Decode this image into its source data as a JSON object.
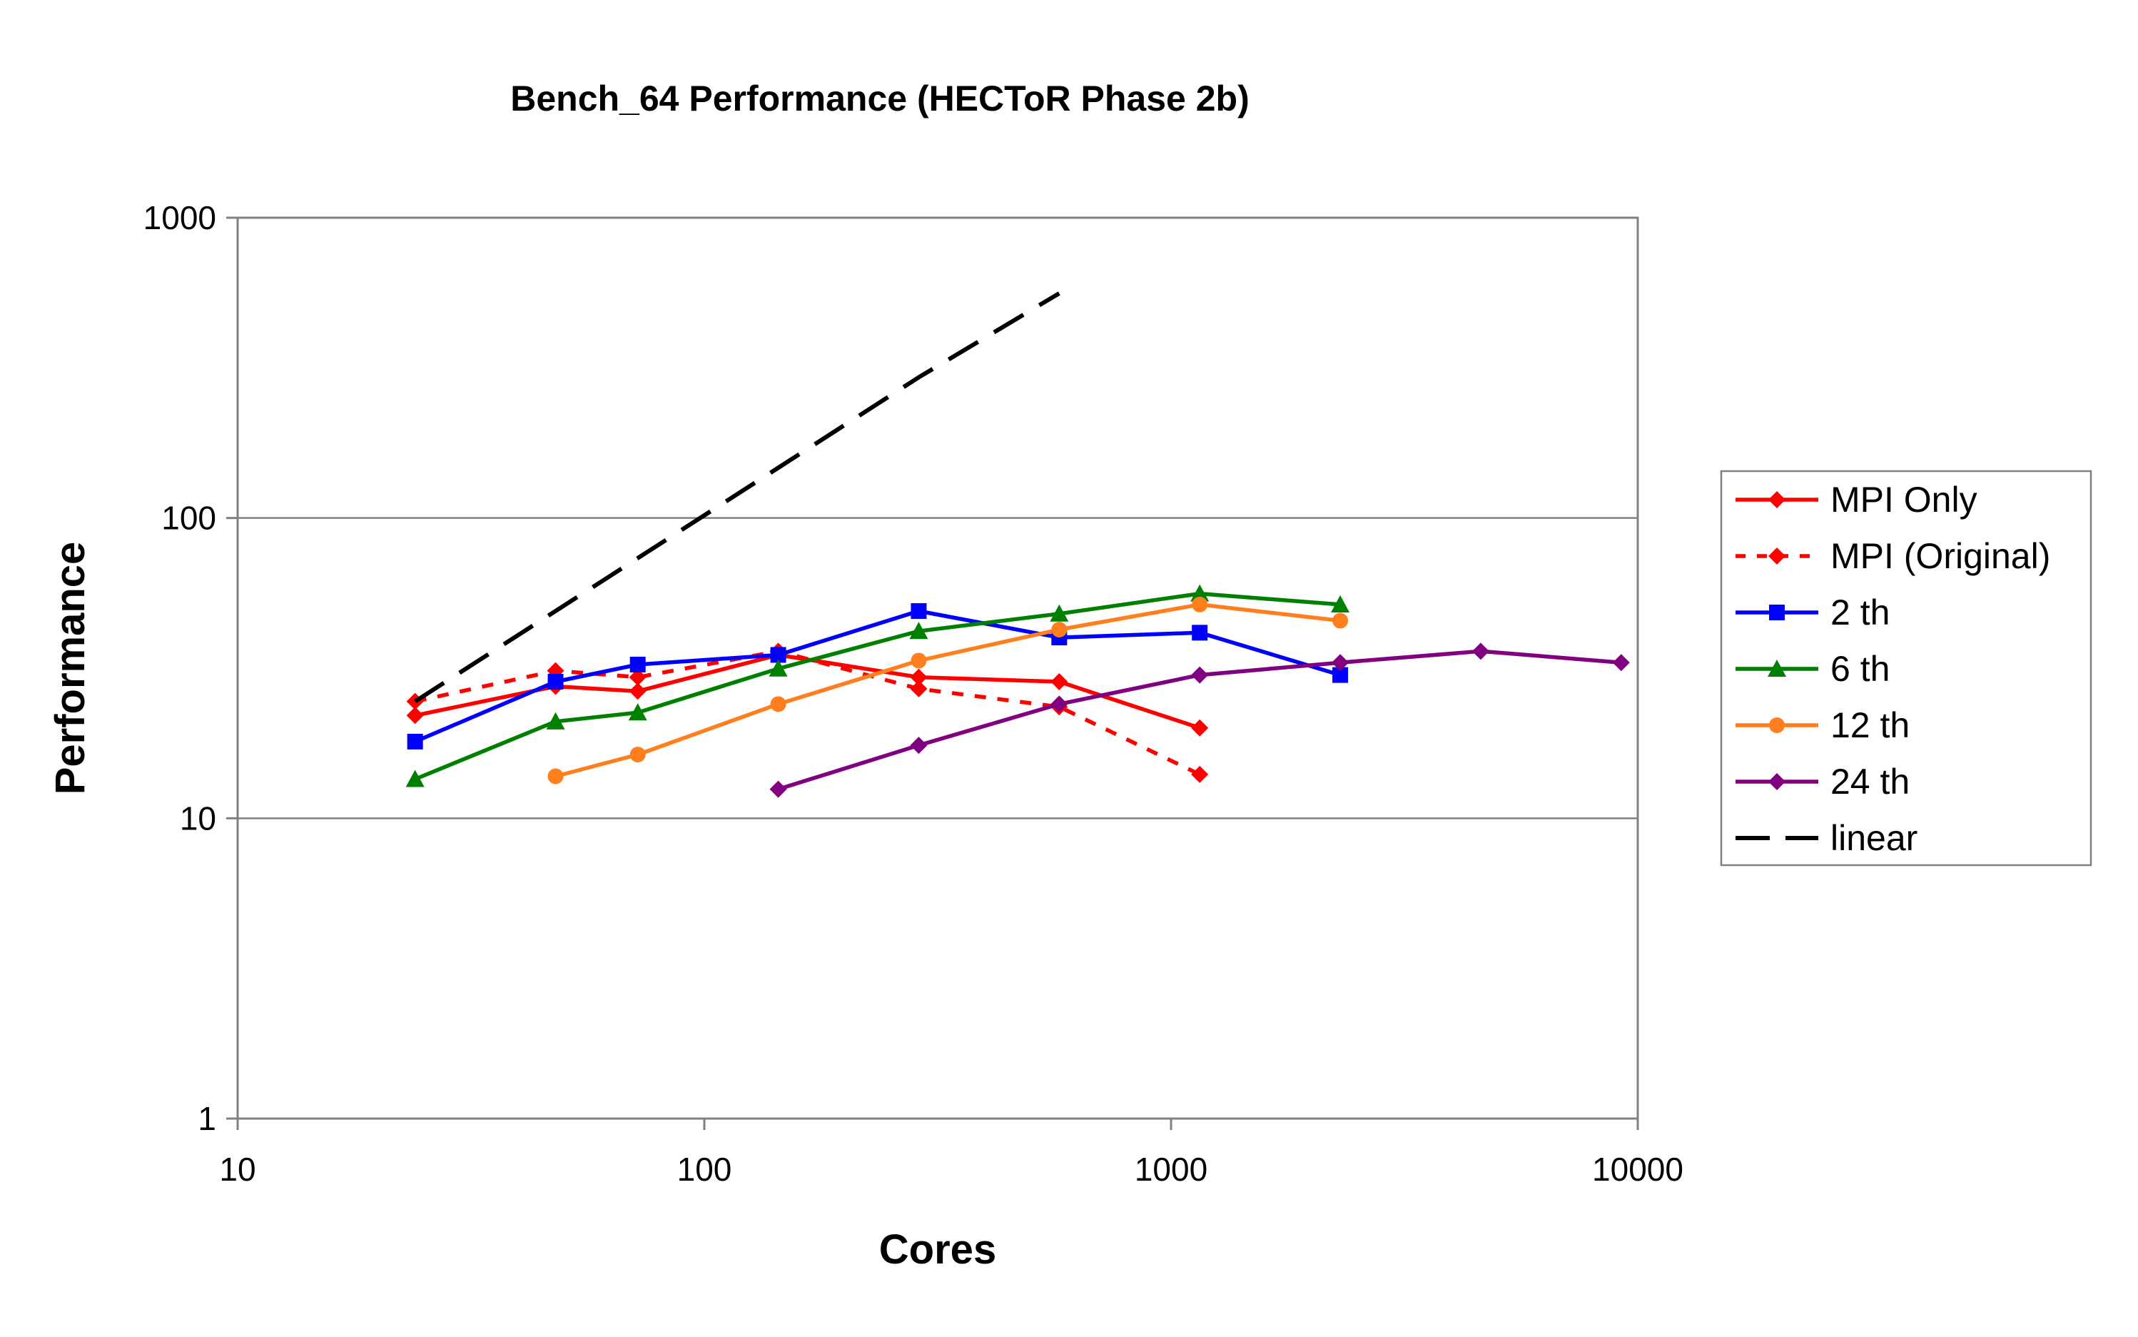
{
  "chart_data": {
    "type": "line",
    "title": "Bench_64 Performance (HECToR Phase 2b)",
    "xlabel": "Cores",
    "ylabel": "Performance",
    "xscale": "log",
    "yscale": "log",
    "xlim": [
      10,
      10000
    ],
    "ylim": [
      1,
      1000
    ],
    "x_ticks": [
      "10",
      "100",
      "1000",
      "10000"
    ],
    "y_ticks": [
      "1",
      "10",
      "100",
      "1000"
    ],
    "grid": "horizontal",
    "legend_position": "right",
    "series": [
      {
        "name": "MPI Only",
        "color": "#ff0000",
        "dash": "solid",
        "marker": "diamond",
        "x": [
          24,
          48,
          72,
          144,
          288,
          576,
          1152
        ],
        "y": [
          22,
          27.5,
          26.5,
          35,
          29.5,
          28.5,
          20
        ]
      },
      {
        "name": "MPI (Original)",
        "color": "#ff0000",
        "dash": "dotted",
        "marker": "diamond",
        "x": [
          24,
          48,
          72,
          144,
          288,
          576,
          1152
        ],
        "y": [
          24.5,
          31,
          29.5,
          36,
          27,
          23.5,
          14
        ]
      },
      {
        "name": "2 th",
        "color": "#0000ff",
        "dash": "solid",
        "marker": "square",
        "x": [
          24,
          48,
          72,
          144,
          288,
          576,
          1152,
          2304
        ],
        "y": [
          18,
          28.5,
          32.5,
          35,
          49,
          40,
          41.5,
          30
        ]
      },
      {
        "name": "6 th",
        "color": "#008000",
        "dash": "solid",
        "marker": "triangle",
        "x": [
          24,
          48,
          72,
          144,
          288,
          576,
          1152,
          2304
        ],
        "y": [
          13.5,
          21,
          22.5,
          31.5,
          42,
          48,
          56,
          51.5
        ]
      },
      {
        "name": "12 th",
        "color": "#ff7f1e",
        "dash": "solid",
        "marker": "circle",
        "x": [
          48,
          72,
          144,
          288,
          576,
          1152,
          2304
        ],
        "y": [
          13.8,
          16.3,
          24,
          33.5,
          42.5,
          51.5,
          45.5
        ]
      },
      {
        "name": "24 th",
        "color": "#800080",
        "dash": "solid",
        "marker": "diamond",
        "x": [
          144,
          288,
          576,
          1152,
          2304,
          4608,
          9216
        ],
        "y": [
          12.5,
          17.5,
          24,
          30,
          33,
          36,
          33
        ]
      },
      {
        "name": "linear",
        "color": "#000000",
        "dash": "dashed",
        "marker": "none",
        "x": [
          24,
          48,
          72,
          144,
          288,
          576
        ],
        "y": [
          24.5,
          49,
          73.5,
          147,
          294,
          560
        ]
      }
    ]
  }
}
